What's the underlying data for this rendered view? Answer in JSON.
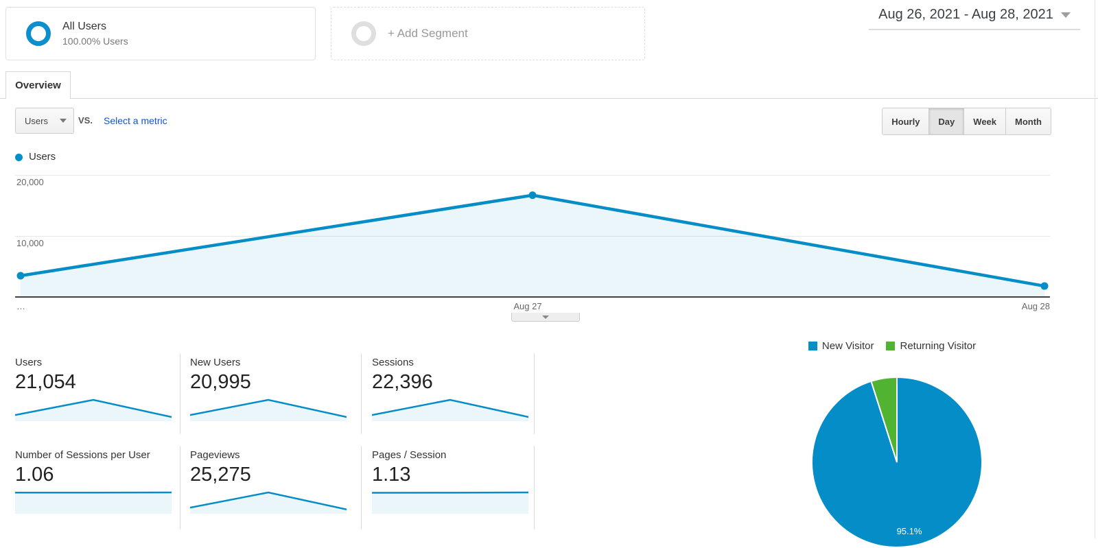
{
  "segments": {
    "all_users": {
      "title": "All Users",
      "subtitle": "100.00% Users"
    },
    "add_segment_label": "+ Add Segment"
  },
  "date_range": "Aug 26, 2021 - Aug 28, 2021",
  "tabs": {
    "overview": "Overview"
  },
  "toolbar": {
    "metric_selector": "Users",
    "vs_label": "vs.",
    "select_metric_link": "Select a metric",
    "granularity": [
      "Hourly",
      "Day",
      "Week",
      "Month"
    ],
    "granularity_selected": "Day"
  },
  "chart_data": [
    {
      "type": "line",
      "legend": "Users",
      "x": [
        "Aug 26",
        "Aug 27",
        "Aug 28"
      ],
      "values": [
        3500,
        16750,
        1800
      ],
      "ylim": [
        0,
        21000
      ],
      "yticks": [
        10000,
        20000
      ],
      "ytick_labels": [
        "10,000",
        "20,000"
      ],
      "x_axis_labels": [
        "…",
        "Aug 27",
        "Aug 28"
      ],
      "grid": "horizontal",
      "color": "#058dc7",
      "fill": "rgba(5,141,199,0.08)"
    },
    {
      "type": "pie",
      "labels": [
        "New Visitor",
        "Returning Visitor"
      ],
      "values": [
        95.1,
        4.9
      ],
      "colors": [
        "#058dc7",
        "#50b432"
      ],
      "data_label": "95.1%",
      "legend_position": "top"
    }
  ],
  "metrics": [
    {
      "label": "Users",
      "value": "21,054",
      "spark": [
        3500,
        16750,
        1800
      ]
    },
    {
      "label": "New Users",
      "value": "20,995",
      "spark": [
        3480,
        16700,
        1790
      ]
    },
    {
      "label": "Sessions",
      "value": "22,396",
      "spark": [
        3720,
        17750,
        1920
      ]
    },
    {
      "label": "Number of Sessions per User",
      "value": "1.06",
      "spark": [
        1.06,
        1.06,
        1.07
      ]
    },
    {
      "label": "Pageviews",
      "value": "25,275",
      "spark": [
        4200,
        19900,
        2250
      ]
    },
    {
      "label": "Pages / Session",
      "value": "1.13",
      "spark": [
        1.12,
        1.125,
        1.14
      ]
    }
  ],
  "colors": {
    "accent_blue": "#058dc7",
    "accent_green": "#50b432",
    "link_blue": "#1155cc"
  }
}
